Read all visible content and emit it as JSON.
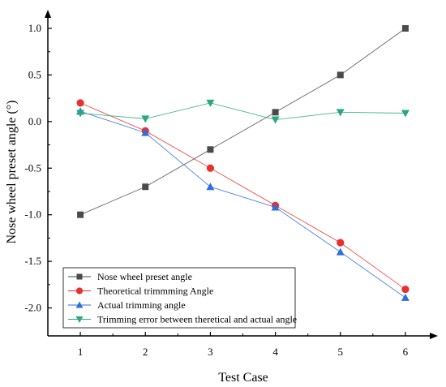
{
  "chart_data": {
    "type": "line",
    "xlabel": "Test Case",
    "ylabel": "Nose wheel  preset angle (°)",
    "x": [
      1,
      2,
      3,
      4,
      5,
      6
    ],
    "xlim": [
      0.5,
      6.5
    ],
    "ylim": [
      -2.3,
      1.2
    ],
    "xticks": [
      1,
      2,
      3,
      4,
      5,
      6
    ],
    "yticks": [
      1.0,
      0.5,
      0.0,
      -0.5,
      -1.0,
      -1.5,
      -2.0
    ],
    "ytick_labels": [
      "1.0",
      "0.5",
      "0.0",
      "-0.5",
      "-1.0",
      "-1.5",
      "-2.0"
    ],
    "grid": false,
    "legend_position": "bottom-left",
    "series": [
      {
        "name": "Nose wheel  preset angle",
        "marker": "square",
        "color": "#4a4a4a",
        "values": [
          -1.0,
          -0.7,
          -0.3,
          0.1,
          0.5,
          1.0
        ]
      },
      {
        "name": "Theoretical trimmming Angle",
        "marker": "circle",
        "color": "#e8312f",
        "values": [
          0.2,
          -0.1,
          -0.5,
          -0.9,
          -1.3,
          -1.8
        ]
      },
      {
        "name": "Actual trimming angle",
        "marker": "triangle-up",
        "color": "#2f6fdc",
        "values": [
          0.11,
          -0.12,
          -0.7,
          -0.92,
          -1.4,
          -1.89
        ]
      },
      {
        "name": "Trimming error between theretical and actual angle",
        "marker": "triangle-down",
        "color": "#2aa87a",
        "values": [
          0.09,
          0.03,
          0.2,
          0.02,
          0.1,
          0.09
        ]
      }
    ]
  }
}
